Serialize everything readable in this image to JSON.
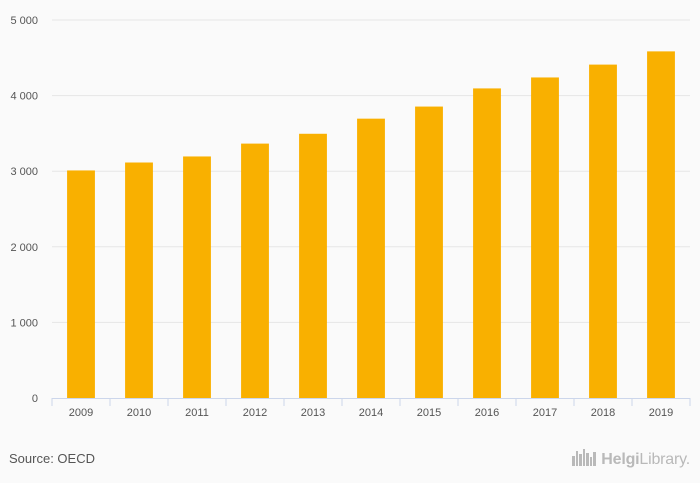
{
  "chart_data": {
    "type": "bar",
    "categories": [
      "2009",
      "2010",
      "2011",
      "2012",
      "2013",
      "2014",
      "2015",
      "2016",
      "2017",
      "2018",
      "2019"
    ],
    "values": [
      3010,
      3115,
      3195,
      3365,
      3495,
      3695,
      3855,
      4095,
      4240,
      4410,
      4585
    ],
    "ylim": [
      0,
      5000
    ],
    "yticks": [
      0,
      1000,
      2000,
      3000,
      4000,
      5000
    ],
    "ytick_labels": [
      "0",
      "1 000",
      "2 000",
      "3 000",
      "4 000",
      "5 000"
    ],
    "grid": true,
    "legend": "none",
    "colors": {
      "bar": "#f9b000",
      "grid": "#e6e6e6",
      "axis": "#ccd6eb",
      "text": "#555555"
    }
  },
  "footer": {
    "source": "Source: OECD",
    "brand_bold": "Helgi",
    "brand_light": "Library."
  }
}
